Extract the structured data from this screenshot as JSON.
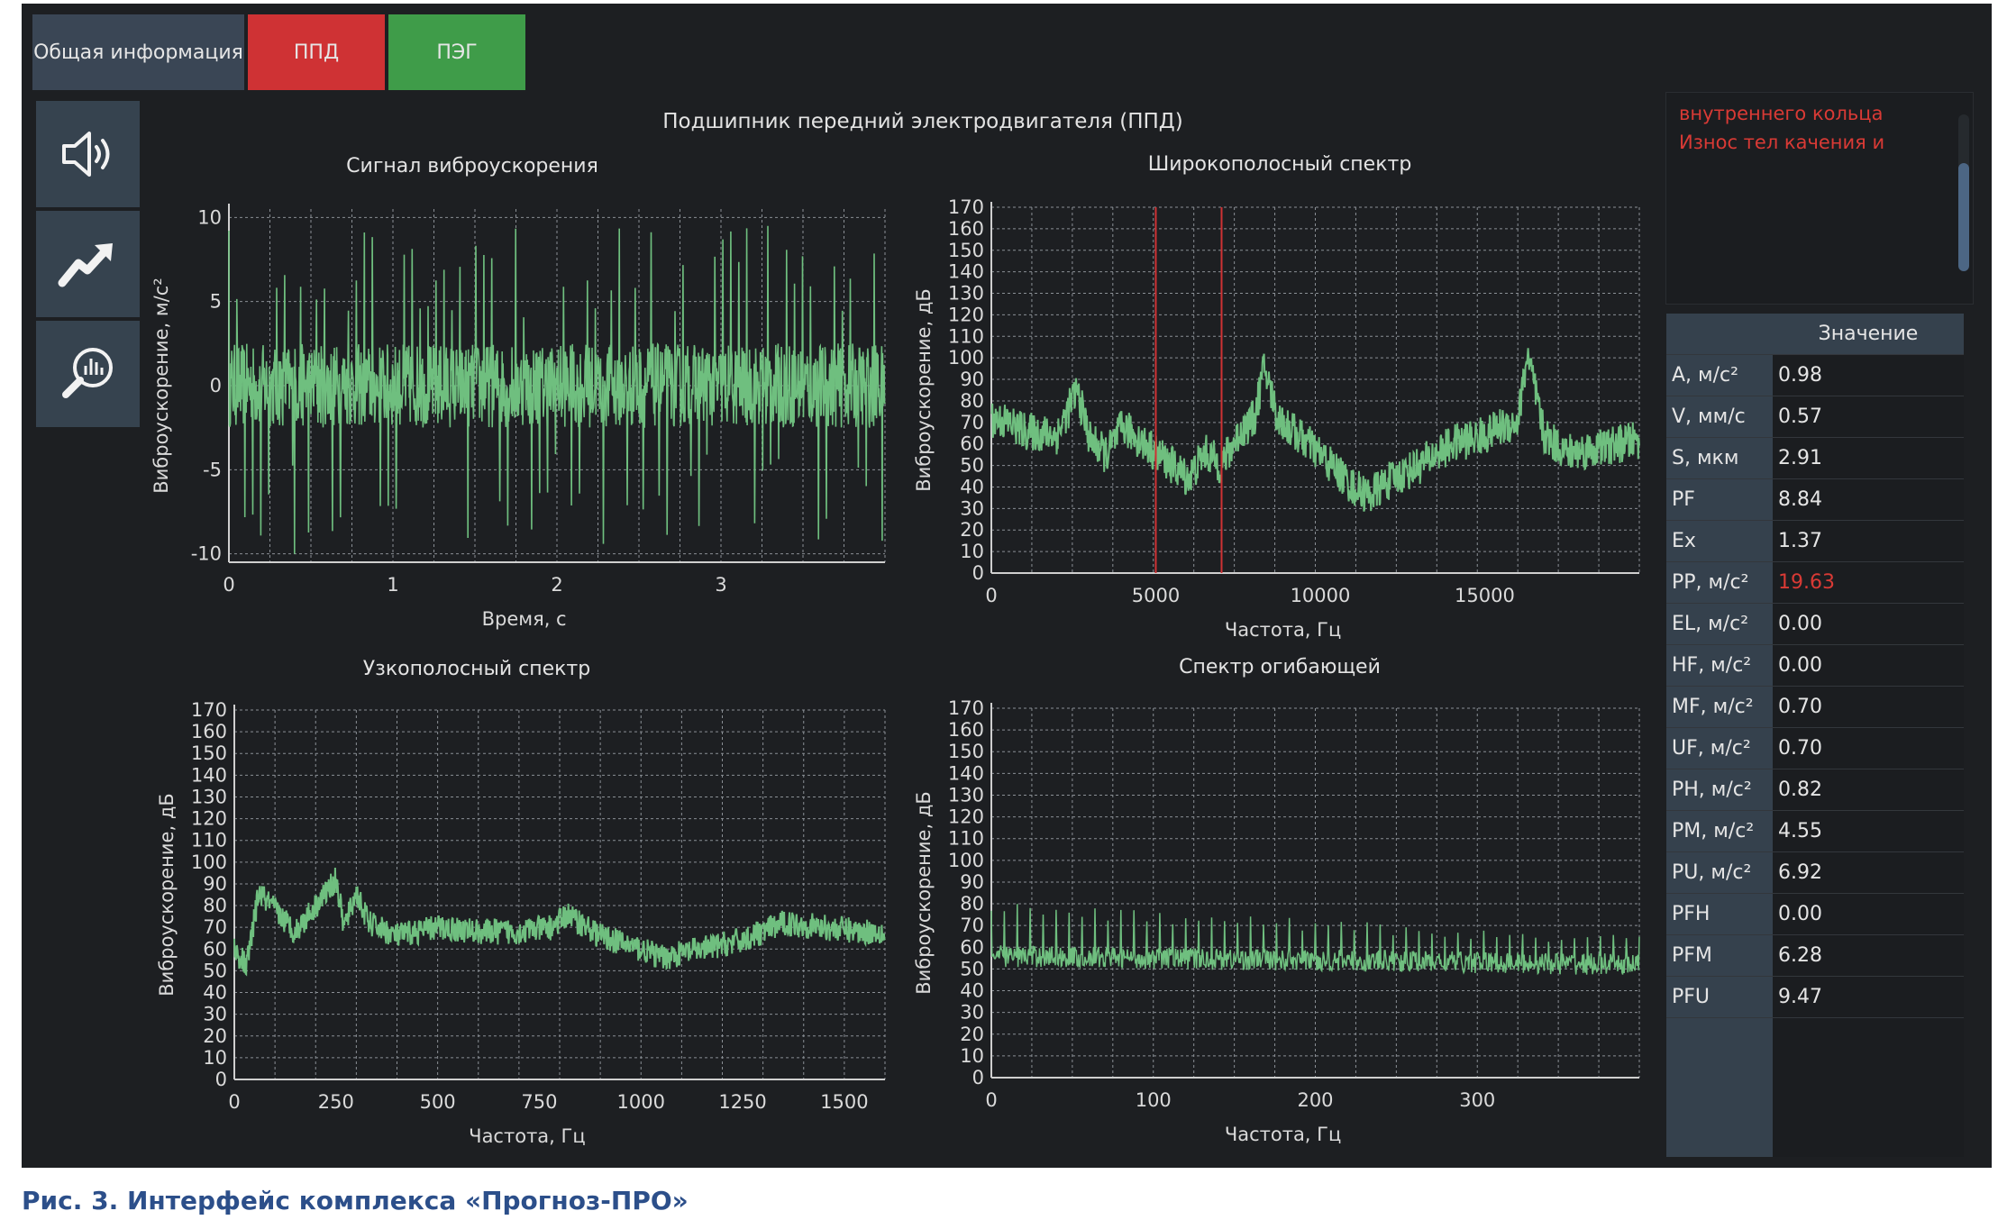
{
  "tabs": [
    {
      "label": "Общая информация"
    },
    {
      "label": "ППД"
    },
    {
      "label": "ПЭГ"
    }
  ],
  "sidebar": {
    "icons": [
      "speaker-icon",
      "trend-icon",
      "spectrum-search-icon"
    ]
  },
  "main_title": "Подшипник передний электродвигателя (ППД)",
  "diagnosis": [
    "внутреннего кольца",
    "Износ тел качения и"
  ],
  "table": {
    "header": "Значение",
    "rows": [
      {
        "name": "A, м/с²",
        "value": "0.98"
      },
      {
        "name": "V, мм/с",
        "value": "0.57"
      },
      {
        "name": "S, мкм",
        "value": "2.91"
      },
      {
        "name": "PF",
        "value": "8.84"
      },
      {
        "name": "Ex",
        "value": "1.37"
      },
      {
        "name": "PP, м/с²",
        "value": "19.63",
        "alert": true
      },
      {
        "name": "EL, м/с²",
        "value": "0.00"
      },
      {
        "name": "HF, м/с²",
        "value": "0.00"
      },
      {
        "name": "MF, м/с²",
        "value": "0.70"
      },
      {
        "name": "UF, м/с²",
        "value": "0.70"
      },
      {
        "name": "PH, м/с²",
        "value": "0.82"
      },
      {
        "name": "PM, м/с²",
        "value": "4.55"
      },
      {
        "name": "PU, м/с²",
        "value": "6.92"
      },
      {
        "name": "PFH",
        "value": "0.00"
      },
      {
        "name": "PFM",
        "value": "6.28"
      },
      {
        "name": "PFU",
        "value": "9.47"
      }
    ],
    "alert_color": "#d93a35"
  },
  "caption": "Рис. 3. Интерфейс комплекса «Прогноз-ПРО»",
  "colors": {
    "signal": "#6fbf7f",
    "marker": "#cf3234",
    "grid": "#8a8f95",
    "tab_ppd": "#cf3234",
    "tab_peg": "#3f9c49"
  },
  "chart_data": [
    {
      "id": "signal",
      "type": "line",
      "title": "Сигнал виброускорения",
      "xlabel": "Время, с",
      "ylabel": "Виброускорение, м/с²",
      "xlim": [
        0,
        4
      ],
      "ylim": [
        -10.5,
        10.5
      ],
      "xticks": [
        0,
        1,
        2,
        3
      ],
      "yticks": [
        -10,
        -5,
        0,
        5,
        10
      ],
      "series": [
        {
          "x_range": [
            0,
            4
          ],
          "envelope": [
            -2.5,
            2.5
          ],
          "spike_max": 9.5,
          "spike_min": -10
        }
      ]
    },
    {
      "id": "broadband",
      "type": "line",
      "title": "Широкополосный спектр",
      "xlabel": "Частота, Гц",
      "ylabel": "Виброускорение, дБ",
      "xlim": [
        0,
        19700
      ],
      "ylim": [
        0,
        170
      ],
      "xticks": [
        0,
        5000,
        10000,
        15000
      ],
      "yticks": [
        0,
        10,
        20,
        30,
        40,
        50,
        60,
        70,
        80,
        90,
        100,
        110,
        120,
        130,
        140,
        150,
        160,
        170
      ],
      "markers": [
        5000,
        7000
      ],
      "series": [
        {
          "x": [
            0,
            500,
            1000,
            2000,
            2600,
            3000,
            3500,
            4000,
            4500,
            5000,
            5500,
            6000,
            6500,
            7000,
            7500,
            8000,
            8300,
            8700,
            9500,
            10000,
            11000,
            11500,
            12000,
            13000,
            14000,
            15000,
            15500,
            16000,
            16300,
            16800,
            17500,
            18500,
            19700
          ],
          "y": [
            72,
            70,
            66,
            64,
            85,
            62,
            55,
            68,
            62,
            56,
            50,
            44,
            56,
            50,
            64,
            72,
            96,
            72,
            62,
            55,
            40,
            36,
            42,
            50,
            60,
            64,
            68,
            70,
            102,
            64,
            56,
            58,
            62
          ]
        }
      ]
    },
    {
      "id": "narrowband",
      "type": "line",
      "title": "Узкополосный спектр",
      "xlabel": "Частота, Гц",
      "ylabel": "Виброускорение, дБ",
      "xlim": [
        0,
        1600
      ],
      "ylim": [
        0,
        170
      ],
      "xticks": [
        0,
        250,
        500,
        750,
        1000,
        1250,
        1500
      ],
      "yticks": [
        0,
        10,
        20,
        30,
        40,
        50,
        60,
        70,
        80,
        90,
        100,
        110,
        120,
        130,
        140,
        150,
        160,
        170
      ],
      "series": [
        {
          "x": [
            0,
            30,
            60,
            100,
            150,
            200,
            250,
            270,
            300,
            330,
            400,
            500,
            600,
            700,
            780,
            820,
            900,
            1000,
            1050,
            1150,
            1250,
            1350,
            1450,
            1550,
            1600
          ],
          "y": [
            60,
            52,
            86,
            78,
            68,
            80,
            92,
            70,
            86,
            72,
            66,
            70,
            68,
            68,
            70,
            76,
            66,
            60,
            56,
            60,
            64,
            72,
            70,
            68,
            68
          ]
        }
      ]
    },
    {
      "id": "envelope",
      "type": "line",
      "title": "Спектр огибающей",
      "xlabel": "Частота, Гц",
      "ylabel": "Виброускорение, дБ",
      "xlim": [
        0,
        400
      ],
      "ylim": [
        0,
        170
      ],
      "xticks": [
        0,
        100,
        200,
        300
      ],
      "yticks": [
        0,
        10,
        20,
        30,
        40,
        50,
        60,
        70,
        80,
        90,
        100,
        110,
        120,
        130,
        140,
        150,
        160,
        170
      ],
      "series": [
        {
          "x_range": [
            0,
            400
          ],
          "baseline_start": 56,
          "baseline_end": 52,
          "spike_start": 78,
          "spike_end": 62
        }
      ]
    }
  ]
}
